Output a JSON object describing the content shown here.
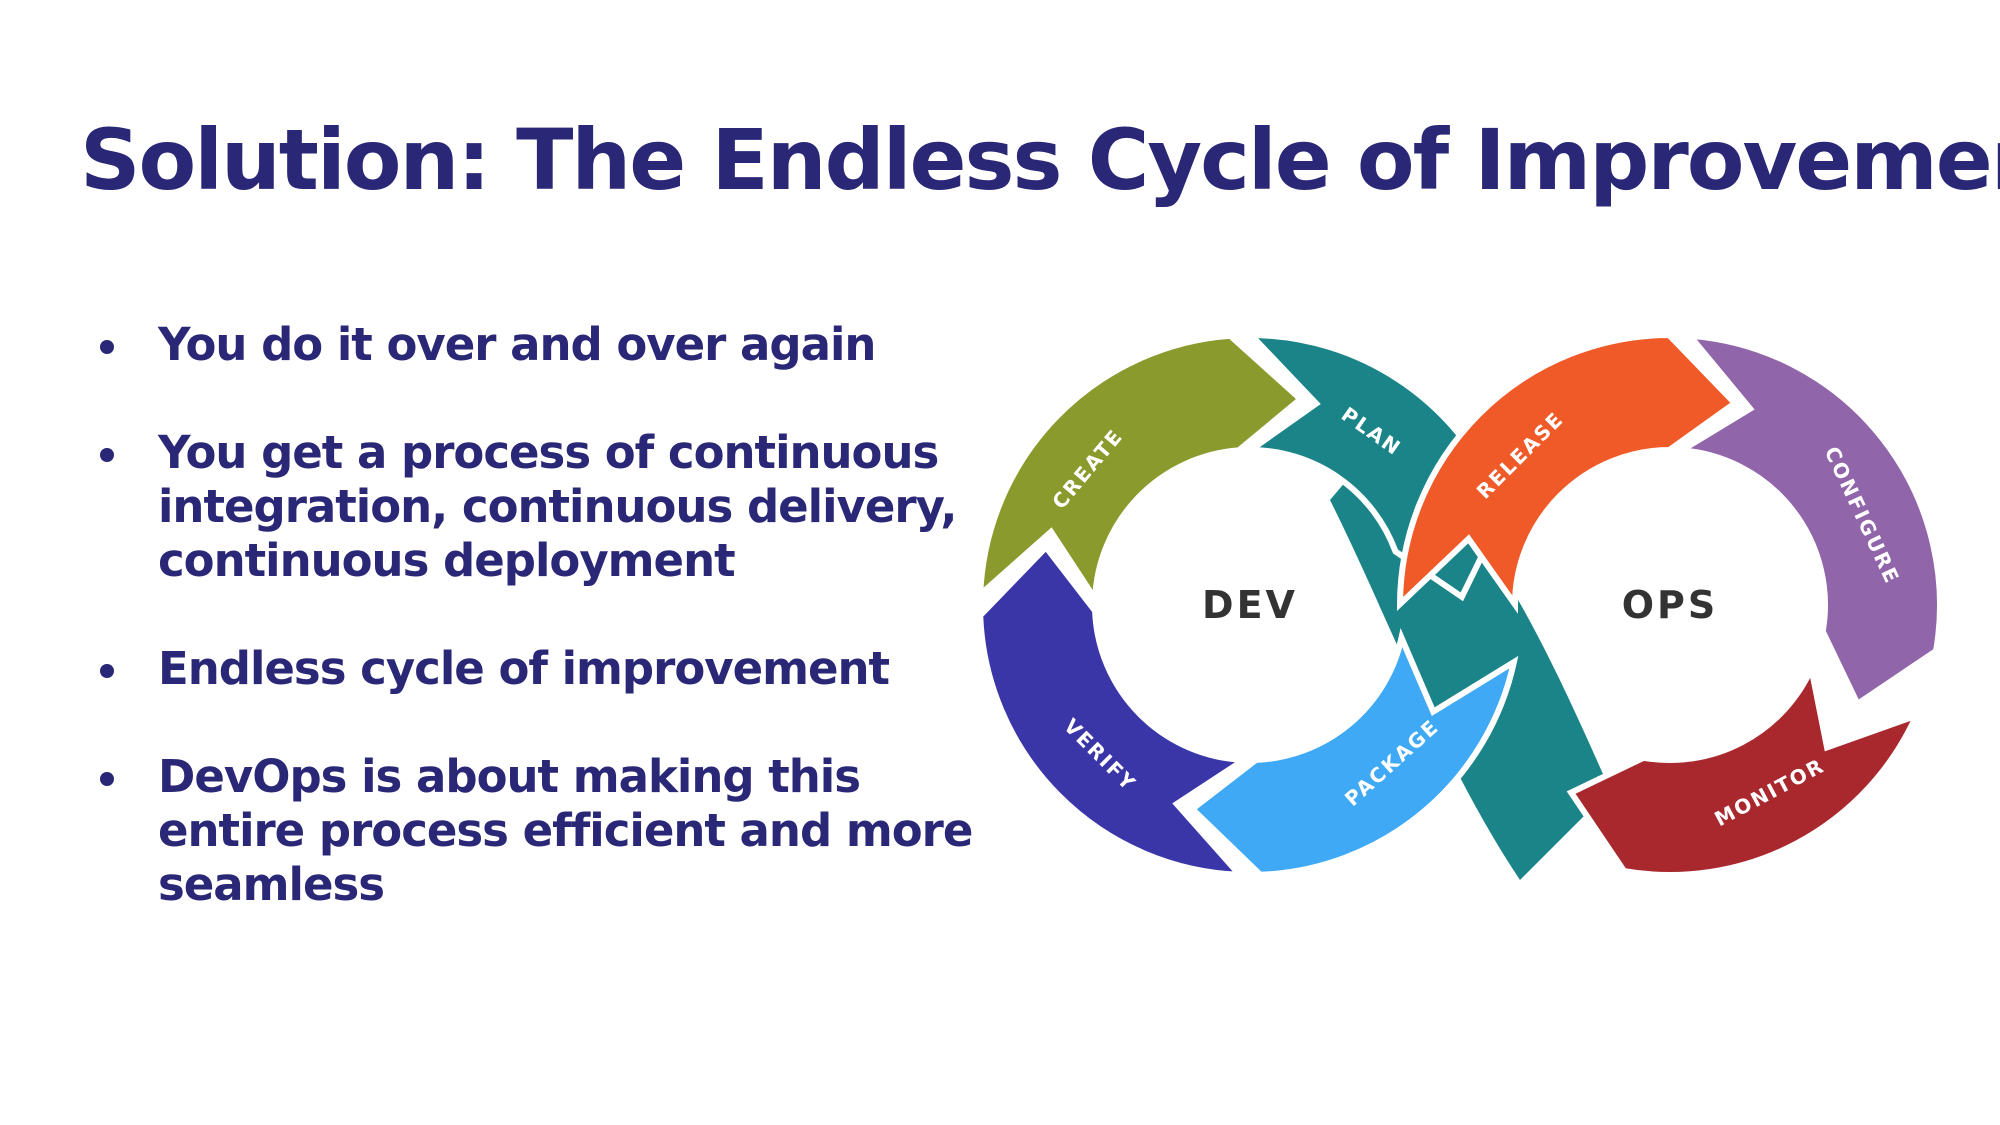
{
  "slide": {
    "title": "Solution: The Endless Cycle of Improvement",
    "bullets": [
      {
        "lines": [
          "You do it over and over again"
        ]
      },
      {
        "lines": [
          "You get a process of continuous",
          "integration, continuous delivery,",
          "continuous deployment"
        ]
      },
      {
        "lines": [
          "Endless cycle of improvement"
        ]
      },
      {
        "lines": [
          "DevOps is about making this",
          "entire process efficient and more",
          "seamless"
        ]
      }
    ]
  },
  "diagram": {
    "hubs": {
      "dev": "DEV",
      "ops": "OPS"
    },
    "stages": {
      "create": "CREATE",
      "plan": "PLAN",
      "release": "RELEASE",
      "configure": "CONFIGURE",
      "monitor": "MONITOR",
      "package": "PACKAGE",
      "verify": "VERIFY"
    },
    "colors": {
      "create": "#8a9a2c",
      "plan": "#1b8489",
      "release": "#f05a28",
      "configure": "#9065aa",
      "monitor": "#a8282e",
      "package": "#3fa9f5",
      "verify": "#3a36a8",
      "connector": "#1b8489",
      "text": "#2a2777",
      "hub_text": "#333333"
    }
  }
}
